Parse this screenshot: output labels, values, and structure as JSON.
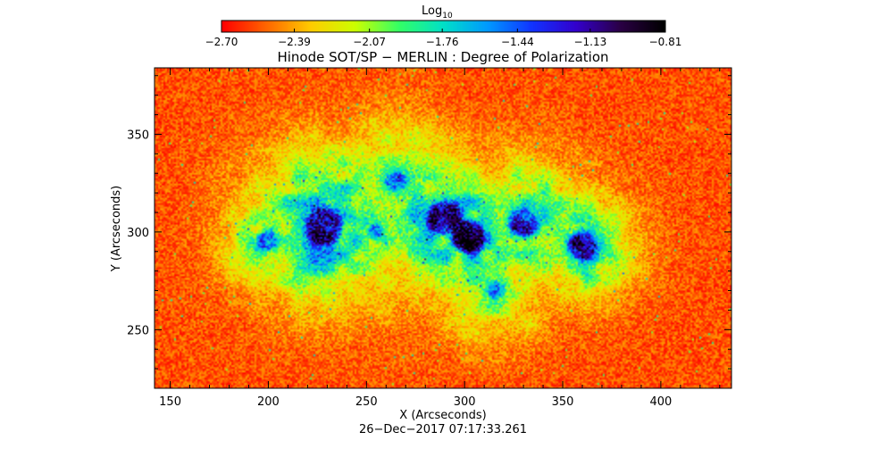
{
  "chart_data": {
    "type": "heatmap",
    "title": "Hinode SOT/SP − MERLIN : Degree of Polarization",
    "xlabel": "X (Arcseconds)",
    "ylabel": "Y (Arcseconds)",
    "xlim": [
      142,
      436
    ],
    "ylim": [
      220,
      384
    ],
    "xticks": [
      150,
      200,
      250,
      300,
      350,
      400
    ],
    "yticks": [
      250,
      300,
      350
    ],
    "xtick_labels": [
      "150",
      "200",
      "250",
      "300",
      "350",
      "400"
    ],
    "ytick_labels": [
      "250",
      "300",
      "350"
    ],
    "colorbar": {
      "label": "Log",
      "label_subscript": "10",
      "ticks": [
        -2.7,
        -2.39,
        -2.07,
        -1.76,
        -1.44,
        -1.13,
        -0.81
      ],
      "tick_labels": [
        "−2.70",
        "−2.39",
        "−2.07",
        "−1.76",
        "−1.44",
        "−1.13",
        "−0.81"
      ],
      "range": [
        -2.7,
        -0.81
      ],
      "colors": [
        "#ff0000",
        "#ff6600",
        "#ffcc00",
        "#ccff00",
        "#33ff66",
        "#00e0c8",
        "#0099ff",
        "#1133ff",
        "#3300cc",
        "#2a0044",
        "#000000"
      ]
    },
    "background_level": -2.55,
    "features": [
      {
        "x": 228,
        "y": 303,
        "peak": -0.95,
        "core_radius": 7,
        "halo_radius": 26
      },
      {
        "x": 290,
        "y": 307,
        "peak": -1.0,
        "core_radius": 6,
        "halo_radius": 22
      },
      {
        "x": 302,
        "y": 298,
        "peak": -1.0,
        "core_radius": 6,
        "halo_radius": 24
      },
      {
        "x": 330,
        "y": 305,
        "peak": -1.25,
        "core_radius": 5,
        "halo_radius": 22
      },
      {
        "x": 360,
        "y": 293,
        "peak": -1.2,
        "core_radius": 5,
        "halo_radius": 18
      },
      {
        "x": 200,
        "y": 295,
        "peak": -1.4,
        "core_radius": 3,
        "halo_radius": 16
      },
      {
        "x": 265,
        "y": 325,
        "peak": -1.5,
        "core_radius": 3,
        "halo_radius": 22
      },
      {
        "x": 255,
        "y": 300,
        "peak": -1.7,
        "core_radius": 2,
        "halo_radius": 28
      },
      {
        "x": 315,
        "y": 270,
        "peak": -1.6,
        "core_radius": 2,
        "halo_radius": 18
      }
    ],
    "grid": false,
    "legend": "none"
  },
  "footer": {
    "timestamp": "26−Dec−2017 07:17:33.261"
  }
}
